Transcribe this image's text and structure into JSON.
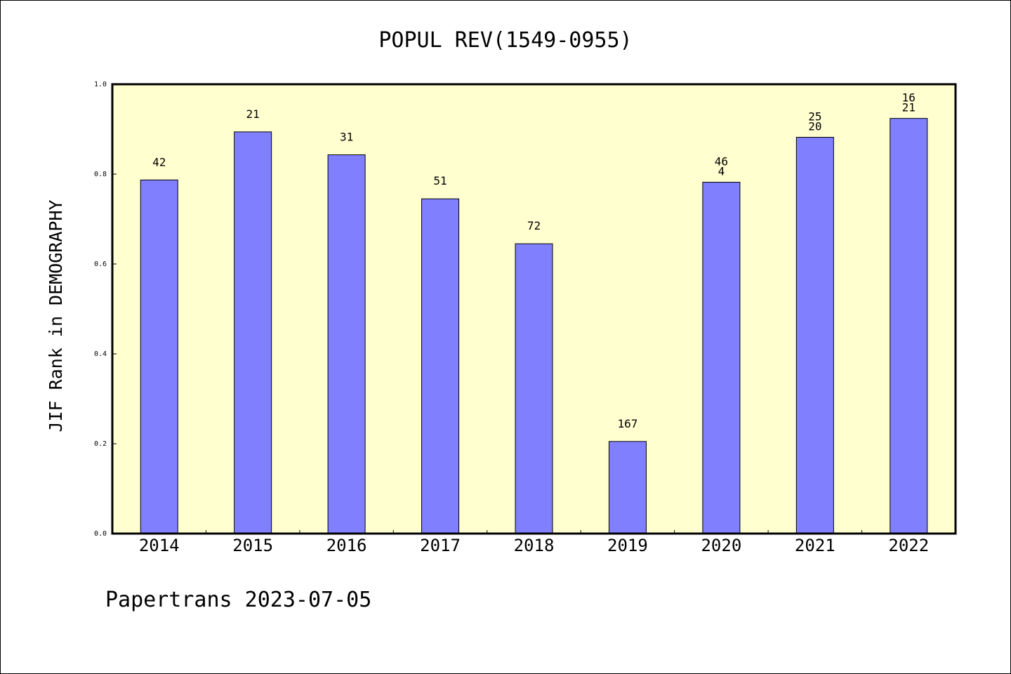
{
  "chart_data": {
    "type": "bar",
    "title": "POPUL REV(1549-0955)",
    "ylabel": "JIF Rank in DEMOGRAPHY",
    "xlabel": "",
    "ylim": [
      0.0,
      1.0
    ],
    "yticks": [
      "0.0",
      "0.2",
      "0.4",
      "0.6",
      "0.8",
      "1.0"
    ],
    "grid": false,
    "categories": [
      "2014",
      "2015",
      "2016",
      "2017",
      "2018",
      "2019",
      "2020",
      "2021",
      "2022"
    ],
    "values": [
      0.787,
      0.894,
      0.843,
      0.745,
      0.645,
      0.205,
      0.782,
      0.882,
      0.924
    ],
    "labels": [
      [
        "42"
      ],
      [
        "21"
      ],
      [
        "31"
      ],
      [
        "51"
      ],
      [
        "72"
      ],
      [
        "167"
      ],
      [
        "46",
        "4"
      ],
      [
        "25",
        "20"
      ],
      [
        "16",
        "21"
      ]
    ]
  },
  "colors": {
    "bar_fill": "#8080ff",
    "plot_background": "#ffffd0",
    "axis": "#000000"
  },
  "footer": "Papertrans 2023-07-05"
}
